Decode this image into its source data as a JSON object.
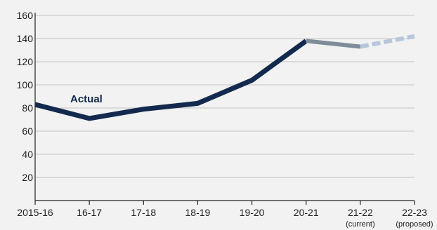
{
  "chart_data": {
    "type": "line",
    "title": "",
    "xlabel": "",
    "ylabel": "",
    "categories": [
      "2015-16",
      "16-17",
      "17-18",
      "18-19",
      "19-20",
      "20-21",
      "21-22",
      "22-23"
    ],
    "category_sublabels": [
      "",
      "",
      "",
      "",
      "",
      "",
      "(current)",
      "(proposed)"
    ],
    "ylim": [
      0,
      160
    ],
    "yticks": [
      20,
      40,
      60,
      80,
      100,
      120,
      140,
      160
    ],
    "grid": true,
    "legend": "none",
    "annotations": [
      {
        "text": "Actual",
        "series": "actual"
      }
    ],
    "series": [
      {
        "id": "actual",
        "values": [
          83,
          71,
          79,
          84,
          104,
          138,
          null,
          null
        ],
        "color": "#132a4e",
        "style": "solid"
      },
      {
        "id": "current",
        "values": [
          null,
          null,
          null,
          null,
          null,
          138,
          133,
          null
        ],
        "color": "#7f8c99",
        "style": "solid"
      },
      {
        "id": "proposed",
        "values": [
          null,
          null,
          null,
          null,
          null,
          null,
          133,
          142
        ],
        "color": "#b6c7db",
        "style": "dashed"
      }
    ]
  }
}
